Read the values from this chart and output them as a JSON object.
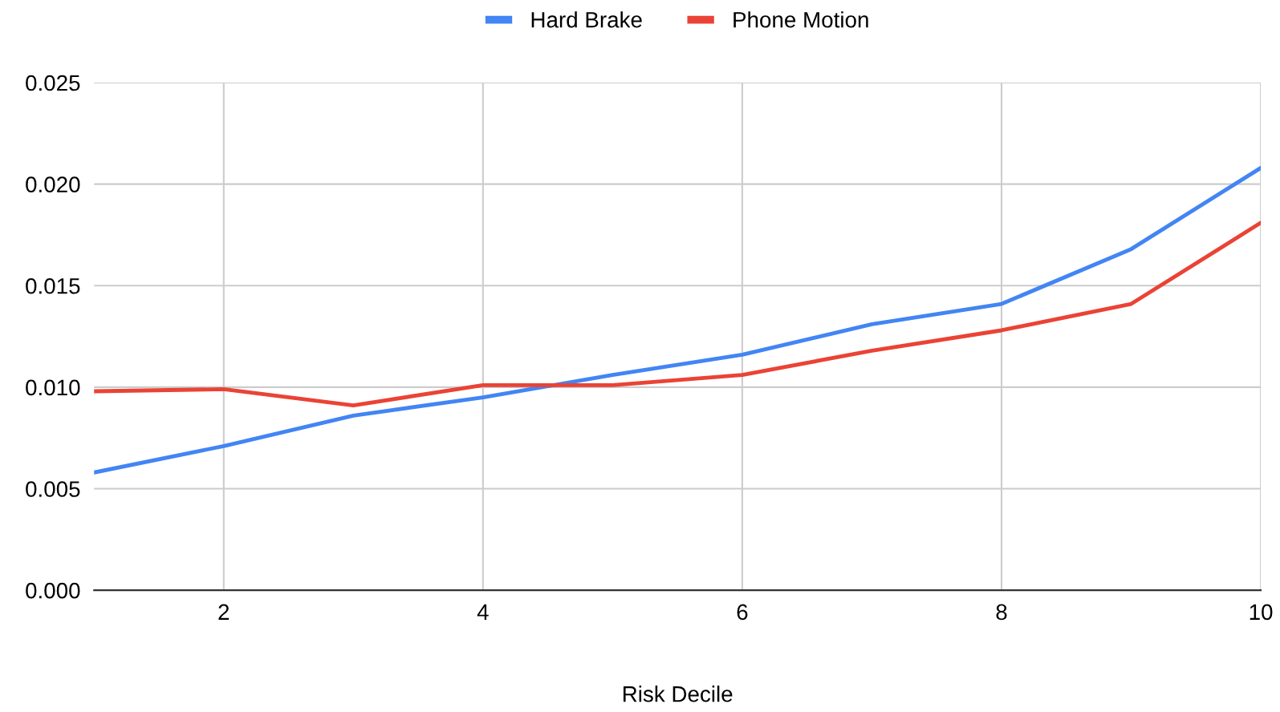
{
  "chart_data": {
    "type": "line",
    "xlabel": "Risk Decile",
    "x": [
      1,
      2,
      3,
      4,
      5,
      6,
      7,
      8,
      9,
      10
    ],
    "series": [
      {
        "name": "Hard Brake",
        "color": "#4285f4",
        "values": [
          0.0058,
          0.0071,
          0.0086,
          0.0095,
          0.0106,
          0.0116,
          0.0131,
          0.0141,
          0.0168,
          0.0208
        ]
      },
      {
        "name": "Phone Motion",
        "color": "#ea4335",
        "values": [
          0.0098,
          0.0099,
          0.0091,
          0.0101,
          0.0101,
          0.0106,
          0.0118,
          0.0128,
          0.0141,
          0.0181
        ]
      }
    ],
    "xlim": [
      1,
      10
    ],
    "xticks": [
      2,
      4,
      6,
      8,
      10
    ],
    "ylim": [
      0,
      0.025
    ],
    "yticks": [
      {
        "value": 0,
        "label": "0.000"
      },
      {
        "value": 0.005,
        "label": "0.005"
      },
      {
        "value": 0.01,
        "label": "0.010"
      },
      {
        "value": 0.015,
        "label": "0.015"
      },
      {
        "value": 0.02,
        "label": "0.020"
      },
      {
        "value": 0.025,
        "label": "0.025"
      }
    ],
    "grid": true,
    "legend": "top",
    "marker": "none",
    "line_style": "solid"
  }
}
